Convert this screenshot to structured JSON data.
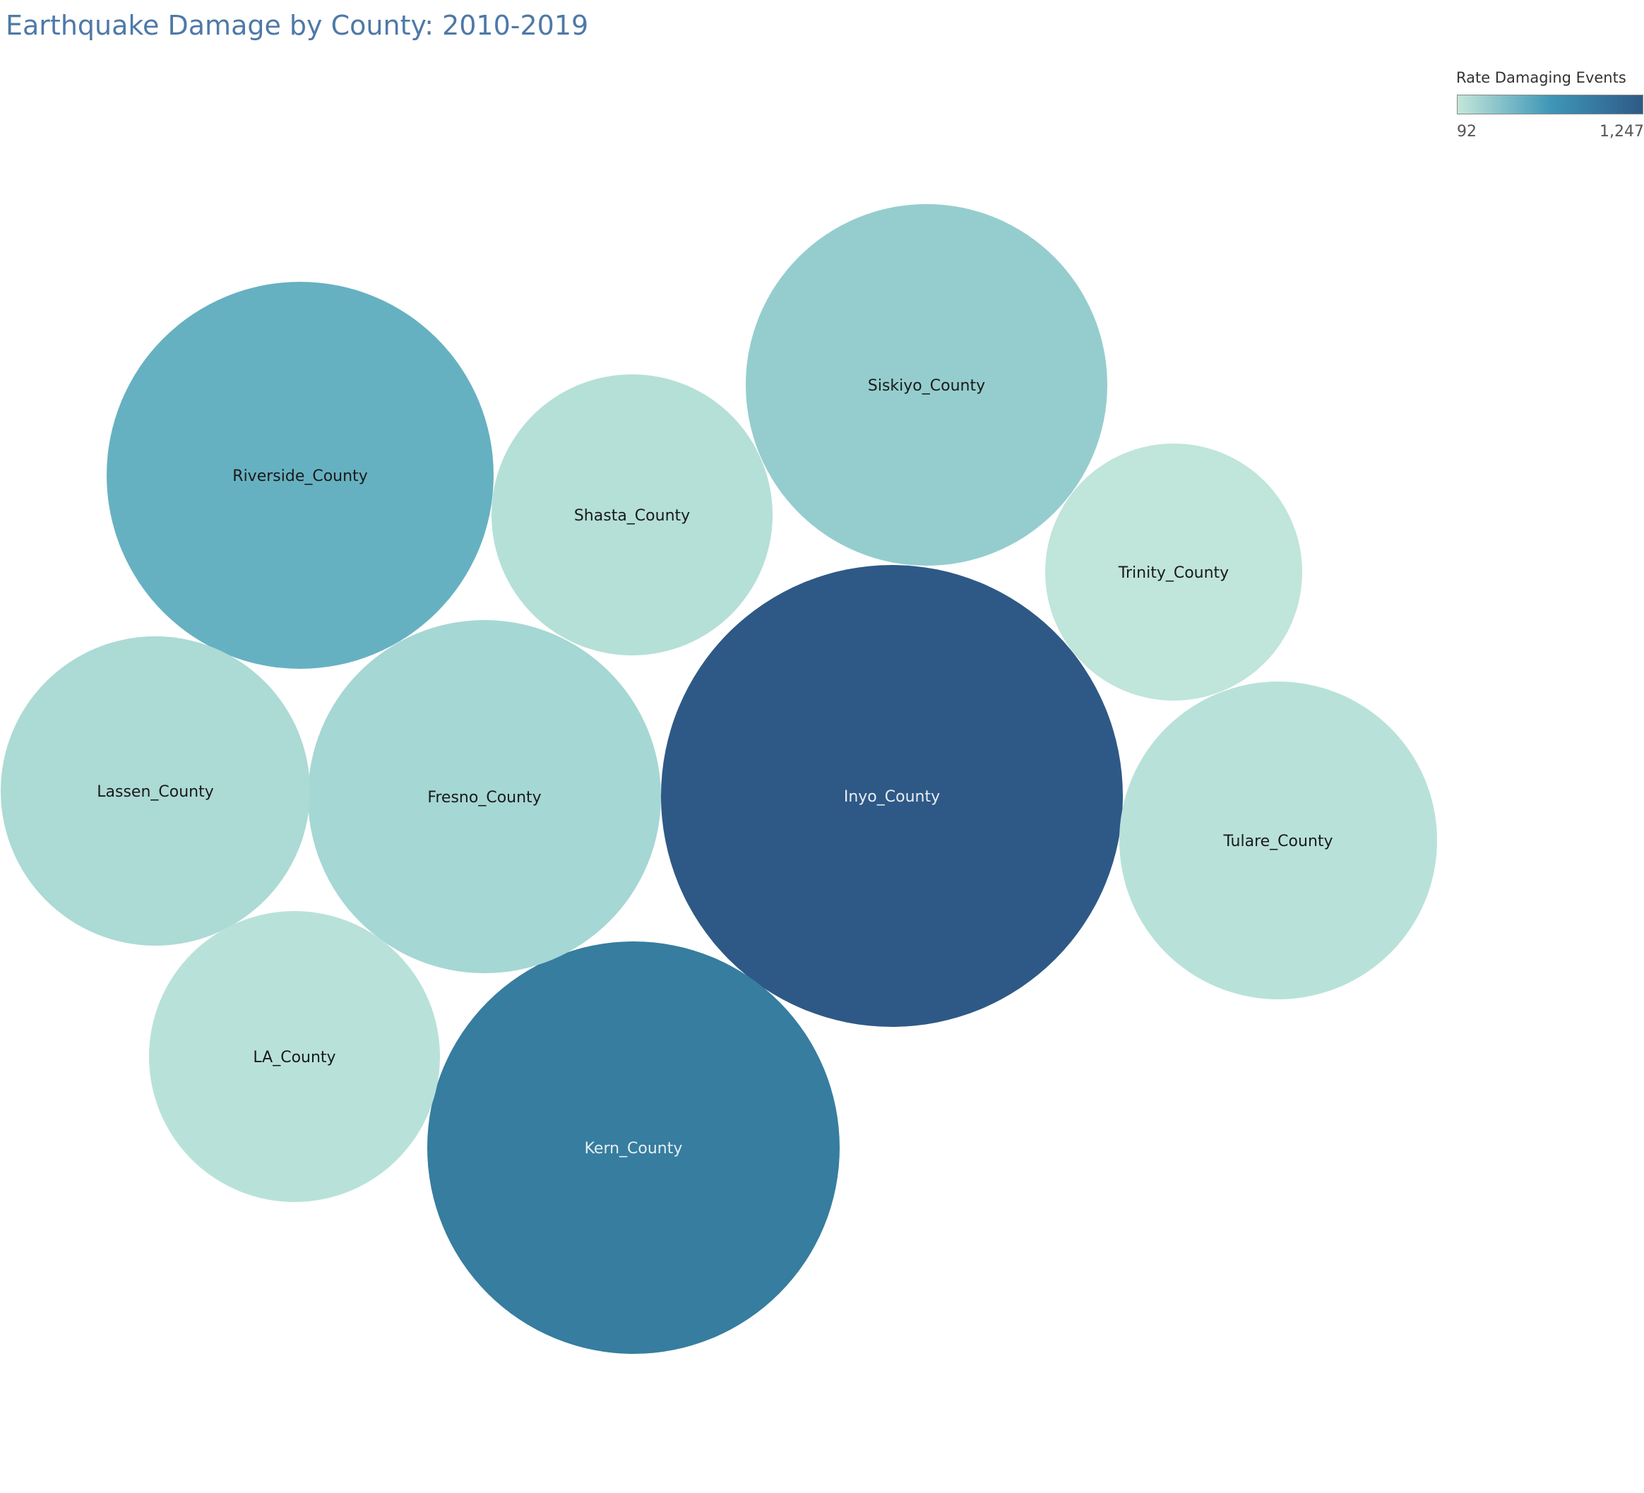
{
  "chart_data": {
    "type": "bubble",
    "title": "Earthquake Damage by County: 2010-2019",
    "color_measure": "Rate Damaging Events",
    "color_range": [
      92,
      1247
    ],
    "color_range_labels": [
      "92",
      "1,247"
    ],
    "color_scale": [
      "#c4e6da",
      "#3f97b7",
      "#2e5a87"
    ],
    "series": [
      {
        "name": "Inyo_County",
        "value": 1247,
        "color": "#2e5986",
        "label_color": "#e8eef4"
      },
      {
        "name": "Kern_County",
        "value": 790,
        "color": "#367d9f",
        "label_color": "#e8eef4"
      },
      {
        "name": "Riverside_County",
        "value": 505,
        "color": "#66b1c1",
        "label_color": "#1a1a1a"
      },
      {
        "name": "Siskiyo_County",
        "value": 345,
        "color": "#95cdce",
        "label_color": "#1a1a1a"
      },
      {
        "name": "Fresno_County",
        "value": 260,
        "color": "#a5d7d4",
        "label_color": "#1a1a1a"
      },
      {
        "name": "Lassen_County",
        "value": 210,
        "color": "#acdad5",
        "label_color": "#1a1a1a"
      },
      {
        "name": "Tulare_County",
        "value": 130,
        "color": "#b8e2d9",
        "label_color": "#1a1a1a"
      },
      {
        "name": "Shasta_County",
        "value": 128,
        "color": "#b5e0d7",
        "label_color": "#1a1a1a"
      },
      {
        "name": "LA_County",
        "value": 120,
        "color": "#b8e2d9",
        "label_color": "#1a1a1a"
      },
      {
        "name": "Trinity_County",
        "value": 92,
        "color": "#c0e5da",
        "label_color": "#1a1a1a"
      }
    ]
  }
}
